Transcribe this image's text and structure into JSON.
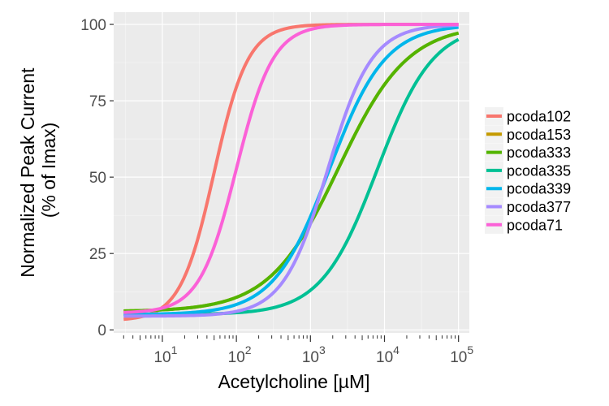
{
  "chart_data": {
    "type": "line",
    "title": "",
    "xlabel": "Acetylcholine [µM]",
    "ylabel_lines": [
      "Normalized Peak Current",
      "(% of Imax)"
    ],
    "x_scale": "log10",
    "xlim": [
      2.2,
      140000
    ],
    "ylim": [
      -1,
      104
    ],
    "x_ticks": [
      10,
      100,
      1000,
      10000,
      100000
    ],
    "x_tick_base": "10",
    "x_tick_exponents": [
      "1",
      "2",
      "3",
      "4",
      "5"
    ],
    "y_ticks": [
      "0",
      "25",
      "50",
      "75",
      "100"
    ],
    "grid": true,
    "legend": "right",
    "series": [
      {
        "name": "pcoda102",
        "color": "#F8766D",
        "bottom": 3,
        "top": 100,
        "ec50": 50,
        "hill": 1.9,
        "x_start": 3
      },
      {
        "name": "pcoda153",
        "color": "#C49A00",
        "bottom": 6,
        "top": 100,
        "ec50": 2400,
        "hill": 0.93,
        "x_start": 3
      },
      {
        "name": "pcoda333",
        "color": "#53B400",
        "bottom": 6,
        "top": 100,
        "ec50": 2400,
        "hill": 0.93,
        "x_start": 3
      },
      {
        "name": "pcoda335",
        "color": "#00C094",
        "bottom": 5,
        "top": 100,
        "ec50": 8000,
        "hill": 1.15,
        "x_start": 3
      },
      {
        "name": "pcoda339",
        "color": "#00B6EB",
        "bottom": 5,
        "top": 100,
        "ec50": 1800,
        "hill": 1.15,
        "x_start": 3
      },
      {
        "name": "pcoda377",
        "color": "#A58AFF",
        "bottom": 4.5,
        "top": 100,
        "ec50": 1700,
        "hill": 1.45,
        "x_start": 3
      },
      {
        "name": "pcoda71",
        "color": "#FB61D7",
        "bottom": 5.5,
        "top": 100,
        "ec50": 100,
        "hill": 1.75,
        "x_start": 3
      }
    ],
    "colors": {
      "panel": "#EBEBEB",
      "grid_major": "#FFFFFF",
      "grid_minor": "#F5F5F5",
      "tick": "#333333"
    }
  }
}
